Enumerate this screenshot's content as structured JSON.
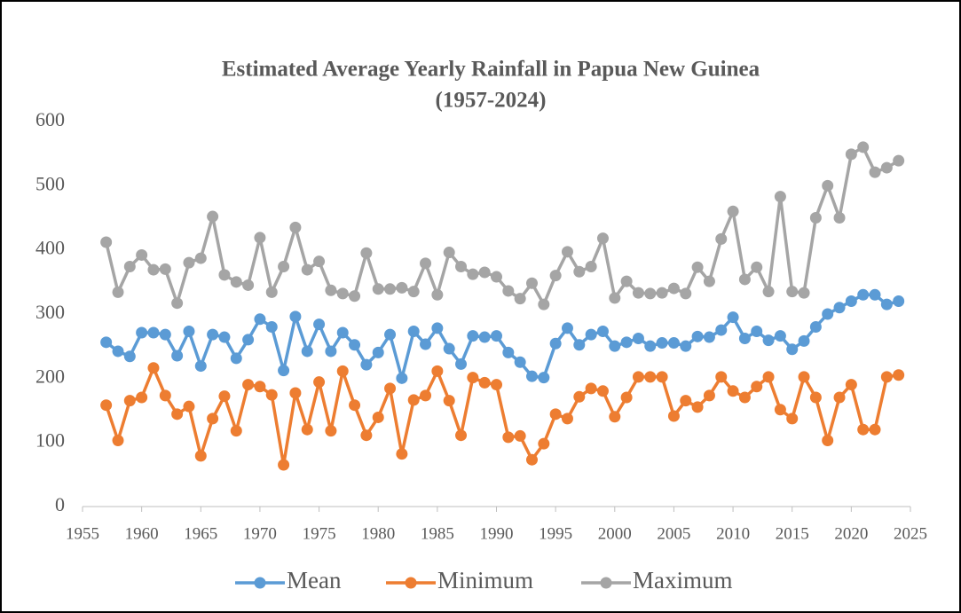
{
  "chart_data": {
    "type": "line",
    "title": [
      "Estimated Average Yearly Rainfall in Papua New Guinea",
      "(1957-2024)"
    ],
    "x": [
      1957,
      1958,
      1959,
      1960,
      1961,
      1962,
      1963,
      1964,
      1965,
      1966,
      1967,
      1968,
      1969,
      1970,
      1971,
      1972,
      1973,
      1974,
      1975,
      1976,
      1977,
      1978,
      1979,
      1980,
      1981,
      1982,
      1983,
      1984,
      1985,
      1986,
      1987,
      1988,
      1989,
      1990,
      1991,
      1992,
      1993,
      1994,
      1995,
      1996,
      1997,
      1998,
      1999,
      2000,
      2001,
      2002,
      2003,
      2004,
      2005,
      2006,
      2007,
      2008,
      2009,
      2010,
      2011,
      2012,
      2013,
      2014,
      2015,
      2016,
      2017,
      2018,
      2019,
      2020,
      2021,
      2022,
      2023,
      2024
    ],
    "series": [
      {
        "name": "Mean",
        "color": "#5b9bd5",
        "values": [
          256,
          242,
          234,
          271,
          271,
          268,
          235,
          273,
          219,
          268,
          264,
          231,
          260,
          292,
          280,
          212,
          296,
          242,
          284,
          242,
          271,
          252,
          221,
          240,
          268,
          200,
          273,
          253,
          278,
          246,
          222,
          266,
          264,
          266,
          240,
          225,
          203,
          201,
          254,
          278,
          252,
          268,
          273,
          250,
          256,
          262,
          250,
          255,
          255,
          250,
          265,
          264,
          275,
          295,
          262,
          273,
          259,
          266,
          245,
          258,
          280,
          300,
          310,
          320,
          330,
          330,
          315,
          320
        ]
      },
      {
        "name": "Minimum",
        "color": "#ed7d31",
        "values": [
          158,
          103,
          165,
          170,
          216,
          173,
          144,
          156,
          79,
          137,
          172,
          118,
          190,
          187,
          174,
          65,
          177,
          120,
          194,
          118,
          211,
          158,
          111,
          139,
          184,
          82,
          166,
          173,
          211,
          165,
          111,
          201,
          193,
          190,
          108,
          110,
          73,
          98,
          144,
          137,
          171,
          184,
          180,
          140,
          170,
          202,
          202,
          202,
          141,
          165,
          155,
          173,
          202,
          180,
          170,
          187,
          202,
          151,
          137,
          202,
          170,
          103,
          170,
          190,
          120,
          120,
          202,
          205
        ]
      },
      {
        "name": "Maximum",
        "color": "#a5a5a5",
        "values": [
          412,
          334,
          374,
          392,
          369,
          370,
          317,
          380,
          387,
          452,
          361,
          350,
          345,
          419,
          334,
          374,
          435,
          369,
          382,
          337,
          332,
          328,
          395,
          339,
          339,
          341,
          335,
          379,
          330,
          396,
          374,
          362,
          365,
          358,
          336,
          324,
          348,
          315,
          360,
          397,
          366,
          374,
          418,
          325,
          351,
          333,
          332,
          333,
          340,
          332,
          373,
          351,
          417,
          460,
          354,
          373,
          335,
          483,
          335,
          333,
          450,
          500,
          450,
          549,
          560,
          521,
          528,
          539
        ]
      }
    ],
    "xlim": [
      1955,
      2025
    ],
    "xticks": [
      1955,
      1960,
      1965,
      1970,
      1975,
      1980,
      1985,
      1990,
      1995,
      2000,
      2005,
      2010,
      2015,
      2020,
      2025
    ],
    "ylim": [
      0,
      600
    ],
    "yticks": [
      0,
      100,
      200,
      300,
      400,
      500,
      600
    ],
    "grid": false,
    "legend": "bottom"
  }
}
